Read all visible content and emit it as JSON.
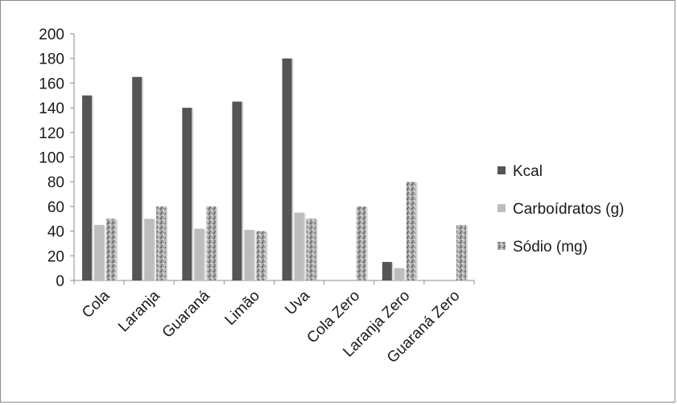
{
  "chart_data": {
    "type": "bar",
    "categories": [
      "Cola",
      "Laranja",
      "Guaraná",
      "Limão",
      "Uva",
      "Cola Zero",
      "Laranja Zero",
      "Guaraná Zero"
    ],
    "series": [
      {
        "name": "Kcal",
        "values": [
          150,
          165,
          140,
          145,
          180,
          0,
          15,
          0
        ],
        "color": "#555555"
      },
      {
        "name": "Carboídratos (g)",
        "values": [
          45,
          50,
          42,
          41,
          55,
          0,
          10,
          0
        ],
        "color": "#bdbdbd"
      },
      {
        "name": "Sódio (mg)",
        "values": [
          50,
          60,
          60,
          40,
          50,
          60,
          80,
          45
        ],
        "color": "#9a9a9a"
      }
    ],
    "y_ticks": [
      "0",
      "20",
      "40",
      "60",
      "80",
      "100",
      "120",
      "140",
      "160",
      "180",
      "200"
    ],
    "ylim": [
      0,
      200
    ],
    "legend_position": "right",
    "grid": false
  }
}
